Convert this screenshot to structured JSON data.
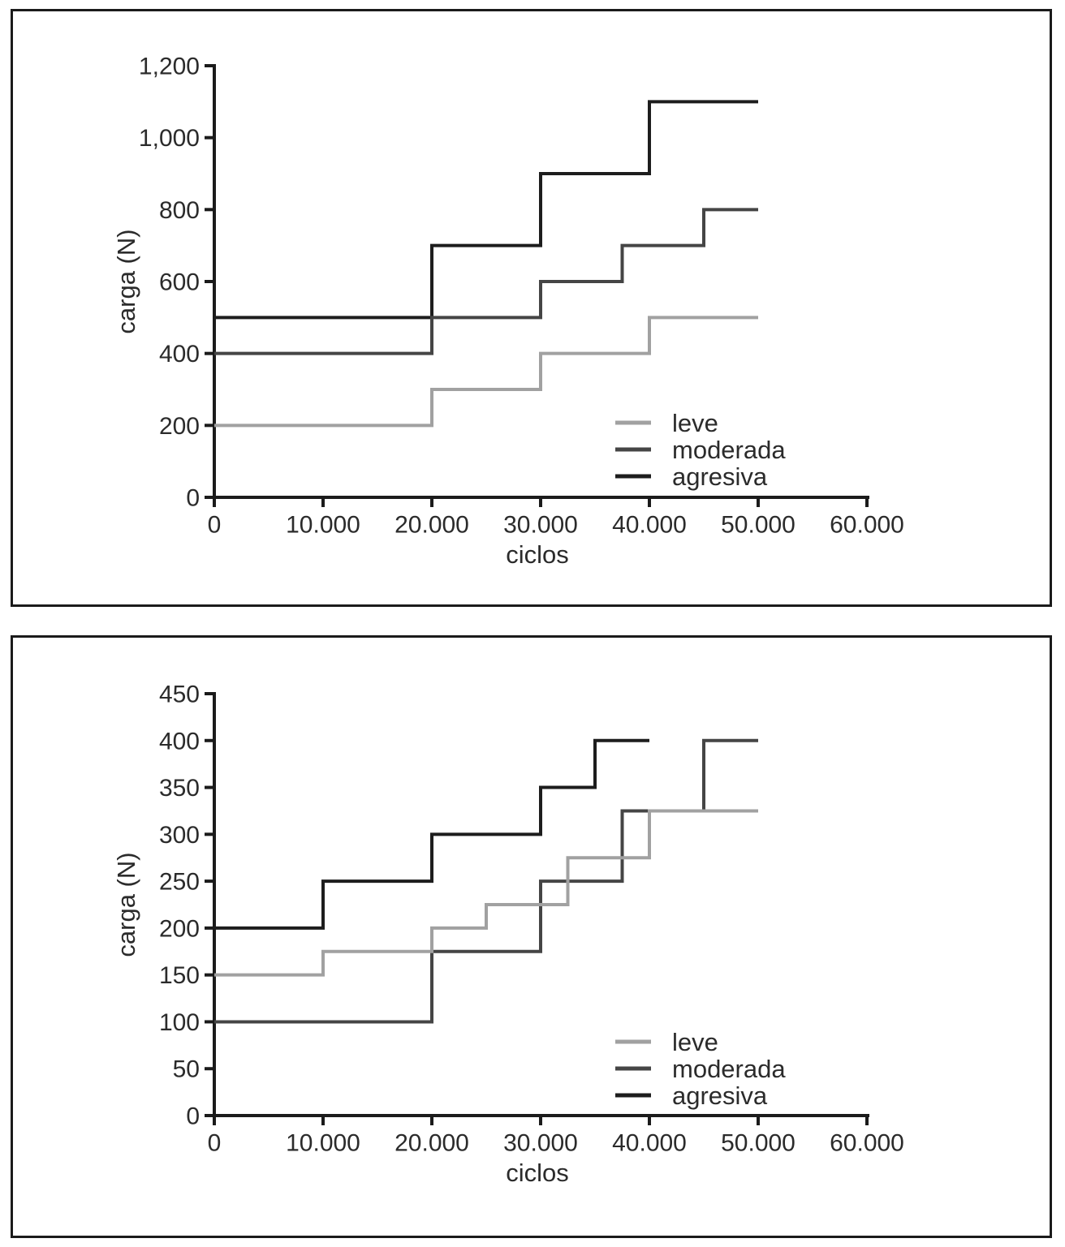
{
  "page": {
    "background": "#ffffff",
    "frame_color": "#1b1b1b"
  },
  "chart_data": [
    {
      "type": "step-line",
      "title": "",
      "xlabel": "ciclos",
      "ylabel": "carga (N)",
      "xlim": [
        0,
        60000
      ],
      "ylim": [
        0,
        1200
      ],
      "grid": false,
      "legend_position": "lower-right",
      "x_ticks": [
        {
          "v": 0,
          "label": "0"
        },
        {
          "v": 10000,
          "label": "10.000"
        },
        {
          "v": 20000,
          "label": "20.000"
        },
        {
          "v": 30000,
          "label": "30.000"
        },
        {
          "v": 40000,
          "label": "40.000"
        },
        {
          "v": 50000,
          "label": "50.000"
        },
        {
          "v": 60000,
          "label": "60.000"
        }
      ],
      "y_ticks": [
        {
          "v": 0,
          "label": "0"
        },
        {
          "v": 200,
          "label": "200"
        },
        {
          "v": 400,
          "label": "400"
        },
        {
          "v": 600,
          "label": "600"
        },
        {
          "v": 800,
          "label": "800"
        },
        {
          "v": 1000,
          "label": "1,000"
        },
        {
          "v": 1200,
          "label": "1,200"
        }
      ],
      "series": [
        {
          "name": "agresiva",
          "color": "#1d1d1d",
          "points": [
            [
              0,
              500
            ],
            [
              20000,
              500
            ],
            [
              20000,
              700
            ],
            [
              30000,
              700
            ],
            [
              30000,
              900
            ],
            [
              40000,
              900
            ],
            [
              40000,
              1100
            ],
            [
              50000,
              1100
            ]
          ]
        },
        {
          "name": "moderada",
          "color": "#454545",
          "points": [
            [
              0,
              400
            ],
            [
              20000,
              400
            ],
            [
              20000,
              500
            ],
            [
              30000,
              500
            ],
            [
              30000,
              600
            ],
            [
              37500,
              600
            ],
            [
              37500,
              700
            ],
            [
              45000,
              700
            ],
            [
              45000,
              800
            ],
            [
              50000,
              800
            ]
          ]
        },
        {
          "name": "leve",
          "color": "#a1a1a1",
          "points": [
            [
              0,
              200
            ],
            [
              20000,
              200
            ],
            [
              20000,
              300
            ],
            [
              30000,
              300
            ],
            [
              30000,
              400
            ],
            [
              40000,
              400
            ],
            [
              40000,
              500
            ],
            [
              50000,
              500
            ]
          ]
        }
      ],
      "legend_items": [
        {
          "label": "leve",
          "color": "#a1a1a1"
        },
        {
          "label": "moderada",
          "color": "#454545"
        },
        {
          "label": "agresiva",
          "color": "#1d1d1d"
        }
      ]
    },
    {
      "type": "step-line",
      "title": "",
      "xlabel": "ciclos",
      "ylabel": "carga (N)",
      "xlim": [
        0,
        60000
      ],
      "ylim": [
        0,
        450
      ],
      "grid": false,
      "legend_position": "lower-right",
      "x_ticks": [
        {
          "v": 0,
          "label": "0"
        },
        {
          "v": 10000,
          "label": "10.000"
        },
        {
          "v": 20000,
          "label": "20.000"
        },
        {
          "v": 30000,
          "label": "30.000"
        },
        {
          "v": 40000,
          "label": "40.000"
        },
        {
          "v": 50000,
          "label": "50.000"
        },
        {
          "v": 60000,
          "label": "60.000"
        }
      ],
      "y_ticks": [
        {
          "v": 0,
          "label": "0"
        },
        {
          "v": 50,
          "label": "50"
        },
        {
          "v": 100,
          "label": "100"
        },
        {
          "v": 150,
          "label": "150"
        },
        {
          "v": 200,
          "label": "200"
        },
        {
          "v": 250,
          "label": "250"
        },
        {
          "v": 300,
          "label": "300"
        },
        {
          "v": 350,
          "label": "350"
        },
        {
          "v": 400,
          "label": "400"
        },
        {
          "v": 450,
          "label": "450"
        }
      ],
      "series": [
        {
          "name": "agresiva",
          "color": "#1d1d1d",
          "points": [
            [
              0,
              200
            ],
            [
              10000,
              200
            ],
            [
              10000,
              250
            ],
            [
              20000,
              250
            ],
            [
              20000,
              300
            ],
            [
              30000,
              300
            ],
            [
              30000,
              350
            ],
            [
              35000,
              350
            ],
            [
              35000,
              400
            ],
            [
              40000,
              400
            ]
          ]
        },
        {
          "name": "moderada",
          "color": "#454545",
          "points": [
            [
              0,
              100
            ],
            [
              20000,
              100
            ],
            [
              20000,
              175
            ],
            [
              30000,
              175
            ],
            [
              30000,
              250
            ],
            [
              37500,
              250
            ],
            [
              37500,
              325
            ],
            [
              45000,
              325
            ],
            [
              45000,
              400
            ],
            [
              50000,
              400
            ]
          ]
        },
        {
          "name": "leve",
          "color": "#a1a1a1",
          "points": [
            [
              0,
              150
            ],
            [
              10000,
              150
            ],
            [
              10000,
              175
            ],
            [
              20000,
              175
            ],
            [
              20000,
              200
            ],
            [
              25000,
              200
            ],
            [
              25000,
              225
            ],
            [
              32500,
              225
            ],
            [
              32500,
              275
            ],
            [
              40000,
              275
            ],
            [
              40000,
              325
            ],
            [
              50000,
              325
            ]
          ]
        }
      ],
      "legend_items": [
        {
          "label": "leve",
          "color": "#a1a1a1"
        },
        {
          "label": "moderada",
          "color": "#454545"
        },
        {
          "label": "agresiva",
          "color": "#1d1d1d"
        }
      ]
    }
  ]
}
